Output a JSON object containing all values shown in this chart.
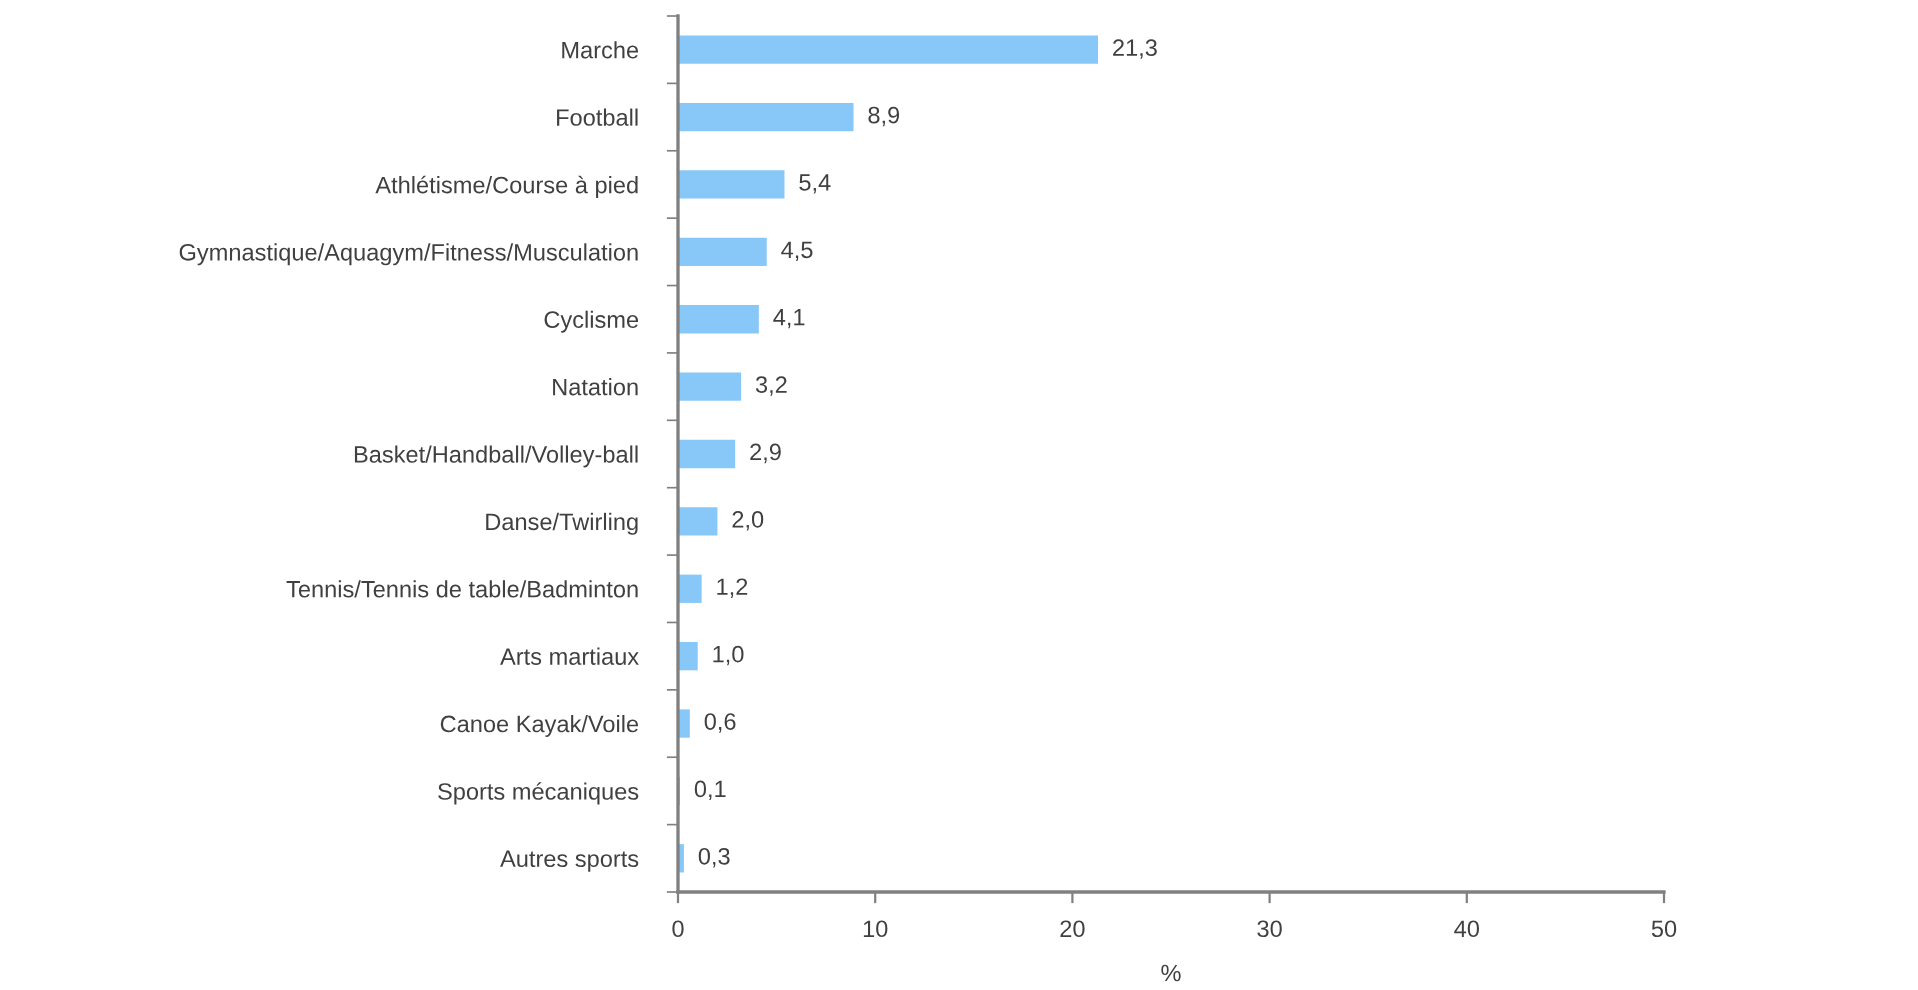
{
  "chart_data": {
    "type": "bar",
    "orientation": "horizontal",
    "categories": [
      "Marche",
      "Football",
      "Athlétisme/Course à pied",
      "Gymnastique/Aquagym/Fitness/Musculation",
      "Cyclisme",
      "Natation",
      "Basket/Handball/Volley-ball",
      "Danse/Twirling",
      "Tennis/Tennis de table/Badminton",
      "Arts martiaux",
      "Canoe Kayak/Voile",
      "Sports mécaniques",
      "Autres sports"
    ],
    "values": [
      21.3,
      8.9,
      5.4,
      4.5,
      4.1,
      3.2,
      2.9,
      2.0,
      1.2,
      1.0,
      0.6,
      0.1,
      0.3
    ],
    "value_labels": [
      "21,3",
      "8,9",
      "5,4",
      "4,5",
      "4,1",
      "3,2",
      "2,9",
      "2,0",
      "1,2",
      "1,0",
      "0,6",
      "0,1",
      "0,3"
    ],
    "color": "#88c8f8",
    "xlabel": "%",
    "xlim": [
      0,
      50
    ],
    "xticks": [
      0,
      10,
      20,
      30,
      40,
      50
    ]
  }
}
